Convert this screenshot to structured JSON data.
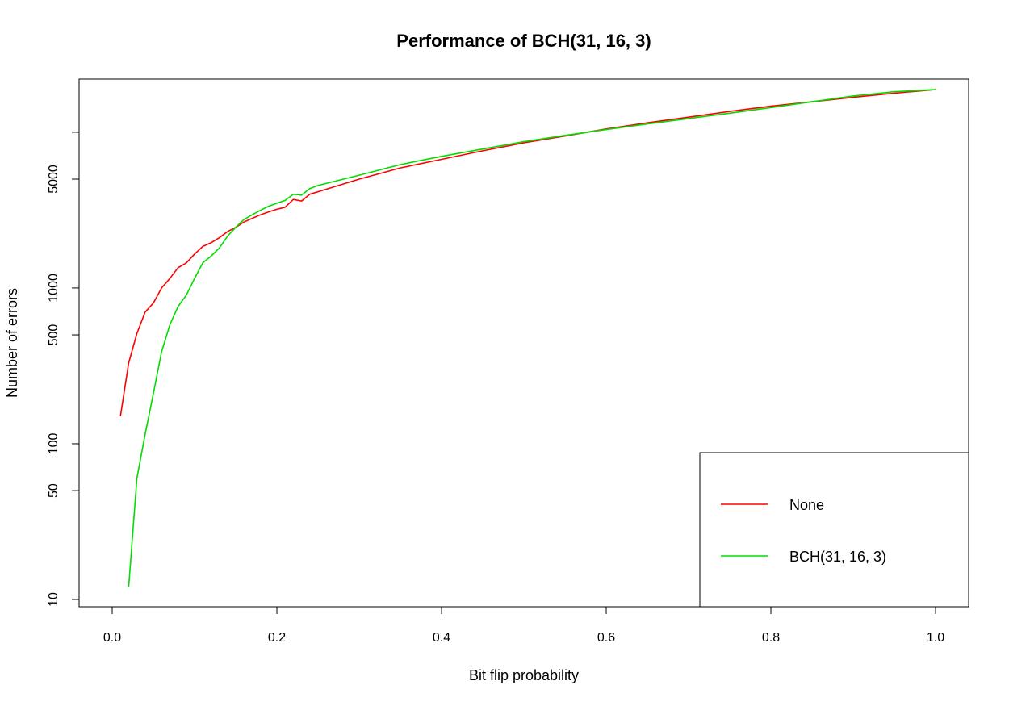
{
  "chart_data": {
    "type": "line",
    "title": "Performance of BCH(31, 16, 3)",
    "xlabel": "Bit flip probability",
    "ylabel": "Number of errors",
    "xlim": [
      0.0,
      1.0
    ],
    "ylim": [
      10,
      16000
    ],
    "y_scale": "log",
    "grid": false,
    "legend_position": "bottom-right",
    "x_ticks": [
      "0.0",
      "0.2",
      "0.4",
      "0.6",
      "0.8",
      "1.0"
    ],
    "y_ticks": [
      "10",
      "50",
      "100",
      "500",
      "1000",
      "5000"
    ],
    "y_ticks_values": [
      10,
      50,
      100,
      500,
      1000,
      5000
    ],
    "series": [
      {
        "name": "None",
        "color": "#ff0000",
        "x": [
          0.01,
          0.02,
          0.03,
          0.04,
          0.05,
          0.06,
          0.07,
          0.08,
          0.09,
          0.1,
          0.11,
          0.12,
          0.13,
          0.14,
          0.15,
          0.16,
          0.17,
          0.18,
          0.19,
          0.2,
          0.21,
          0.22,
          0.23,
          0.24,
          0.25,
          0.3,
          0.35,
          0.4,
          0.45,
          0.5,
          0.55,
          0.6,
          0.65,
          0.7,
          0.75,
          0.8,
          0.85,
          0.9,
          0.95,
          1.0
        ],
        "values": [
          150,
          330,
          510,
          700,
          800,
          1000,
          1150,
          1350,
          1450,
          1650,
          1850,
          1950,
          2100,
          2300,
          2450,
          2650,
          2800,
          2950,
          3080,
          3200,
          3300,
          3700,
          3620,
          4000,
          4150,
          5000,
          5900,
          6700,
          7600,
          8550,
          9450,
          10500,
          11500,
          12500,
          13600,
          14700,
          15700,
          16750,
          17800,
          18800
        ]
      },
      {
        "name": "BCH(31, 16, 3)",
        "color": "#00dd00",
        "x": [
          0.02,
          0.03,
          0.04,
          0.05,
          0.06,
          0.07,
          0.08,
          0.09,
          0.1,
          0.11,
          0.12,
          0.13,
          0.14,
          0.15,
          0.16,
          0.17,
          0.18,
          0.19,
          0.2,
          0.21,
          0.22,
          0.23,
          0.24,
          0.25,
          0.3,
          0.35,
          0.4,
          0.45,
          0.5,
          0.55,
          0.6,
          0.65,
          0.7,
          0.75,
          0.8,
          0.85,
          0.9,
          0.95,
          1.0
        ],
        "values": [
          12,
          60,
          115,
          210,
          390,
          580,
          760,
          900,
          1150,
          1450,
          1600,
          1800,
          2150,
          2450,
          2750,
          2950,
          3150,
          3350,
          3500,
          3650,
          4000,
          3950,
          4350,
          4550,
          5300,
          6200,
          7000,
          7800,
          8700,
          9550,
          10400,
          11300,
          12250,
          13250,
          14400,
          15700,
          17100,
          18200,
          18800
        ]
      }
    ]
  }
}
